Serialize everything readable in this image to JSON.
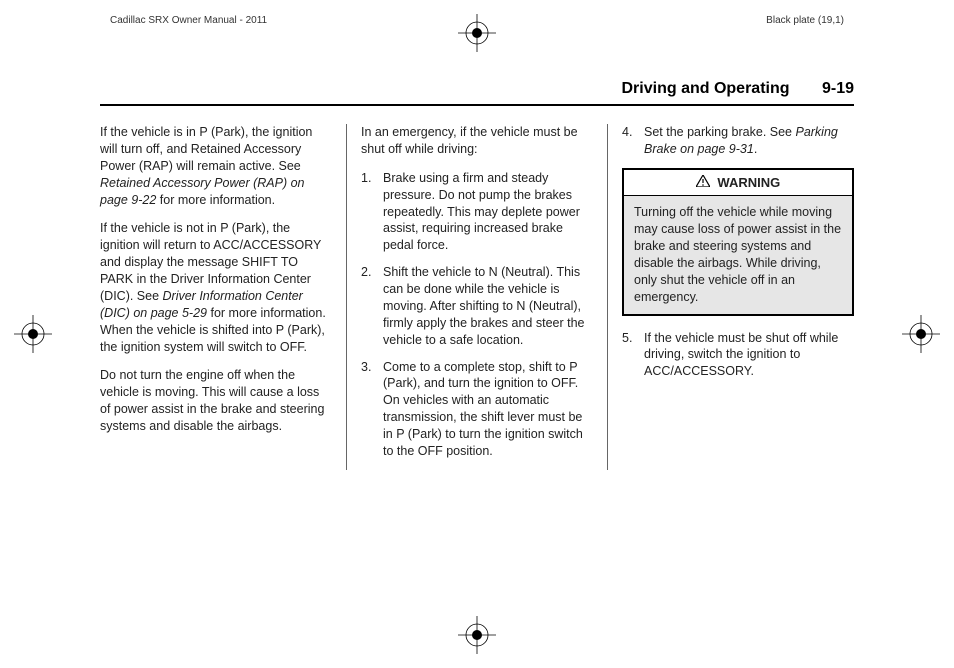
{
  "top_header": {
    "left": "Cadillac SRX Owner Manual - 2011",
    "right": "Black plate (19,1)"
  },
  "section": {
    "title": "Driving and Operating",
    "page_number": "9-19"
  },
  "col1": {
    "p1a": "If the vehicle is in P (Park), the ignition will turn off, and Retained Accessory Power (RAP) will remain active. See ",
    "p1b": "Retained Accessory Power (RAP) on page 9‑22",
    "p1c": " for more information.",
    "p2a": "If the vehicle is not in P (Park), the ignition will return to ACC/ACCESSORY and display the message SHIFT TO PARK in the Driver Information Center (DIC). See ",
    "p2b": "Driver Information Center (DIC) on page 5‑29",
    "p2c": " for more information. When the vehicle is shifted into P (Park), the ignition system will switch to OFF.",
    "p3": "Do not turn the engine off when the vehicle is moving. This will cause a loss of power assist in the brake and steering systems and disable the airbags."
  },
  "col2": {
    "lead": "In an emergency, if the vehicle must be shut off while driving:",
    "steps": [
      "Brake using a firm and steady pressure. Do not pump the brakes repeatedly. This may deplete power assist, requiring increased brake pedal force.",
      "Shift the vehicle to N (Neutral). This can be done while the vehicle is moving. After shifting to N (Neutral), firmly apply the brakes and steer the vehicle to a safe location.",
      "Come to a complete stop, shift to P (Park), and turn the ignition to OFF. On vehicles with an automatic transmission, the shift lever must be in P (Park) to turn the ignition switch to the OFF position."
    ]
  },
  "col3": {
    "step4a": "Set the parking brake. See ",
    "step4b": "Parking Brake on page 9‑31",
    "step4c": ".",
    "warning_label": "WARNING",
    "warning_body": "Turning off the vehicle while moving may cause loss of power assist in the brake and steering systems and disable the airbags. While driving, only shut the vehicle off in an emergency.",
    "step5": "If the vehicle must be shut off while driving, switch the ignition to ACC/ACCESSORY."
  },
  "reg_mark": {
    "stroke": "#000000",
    "size": 38
  }
}
